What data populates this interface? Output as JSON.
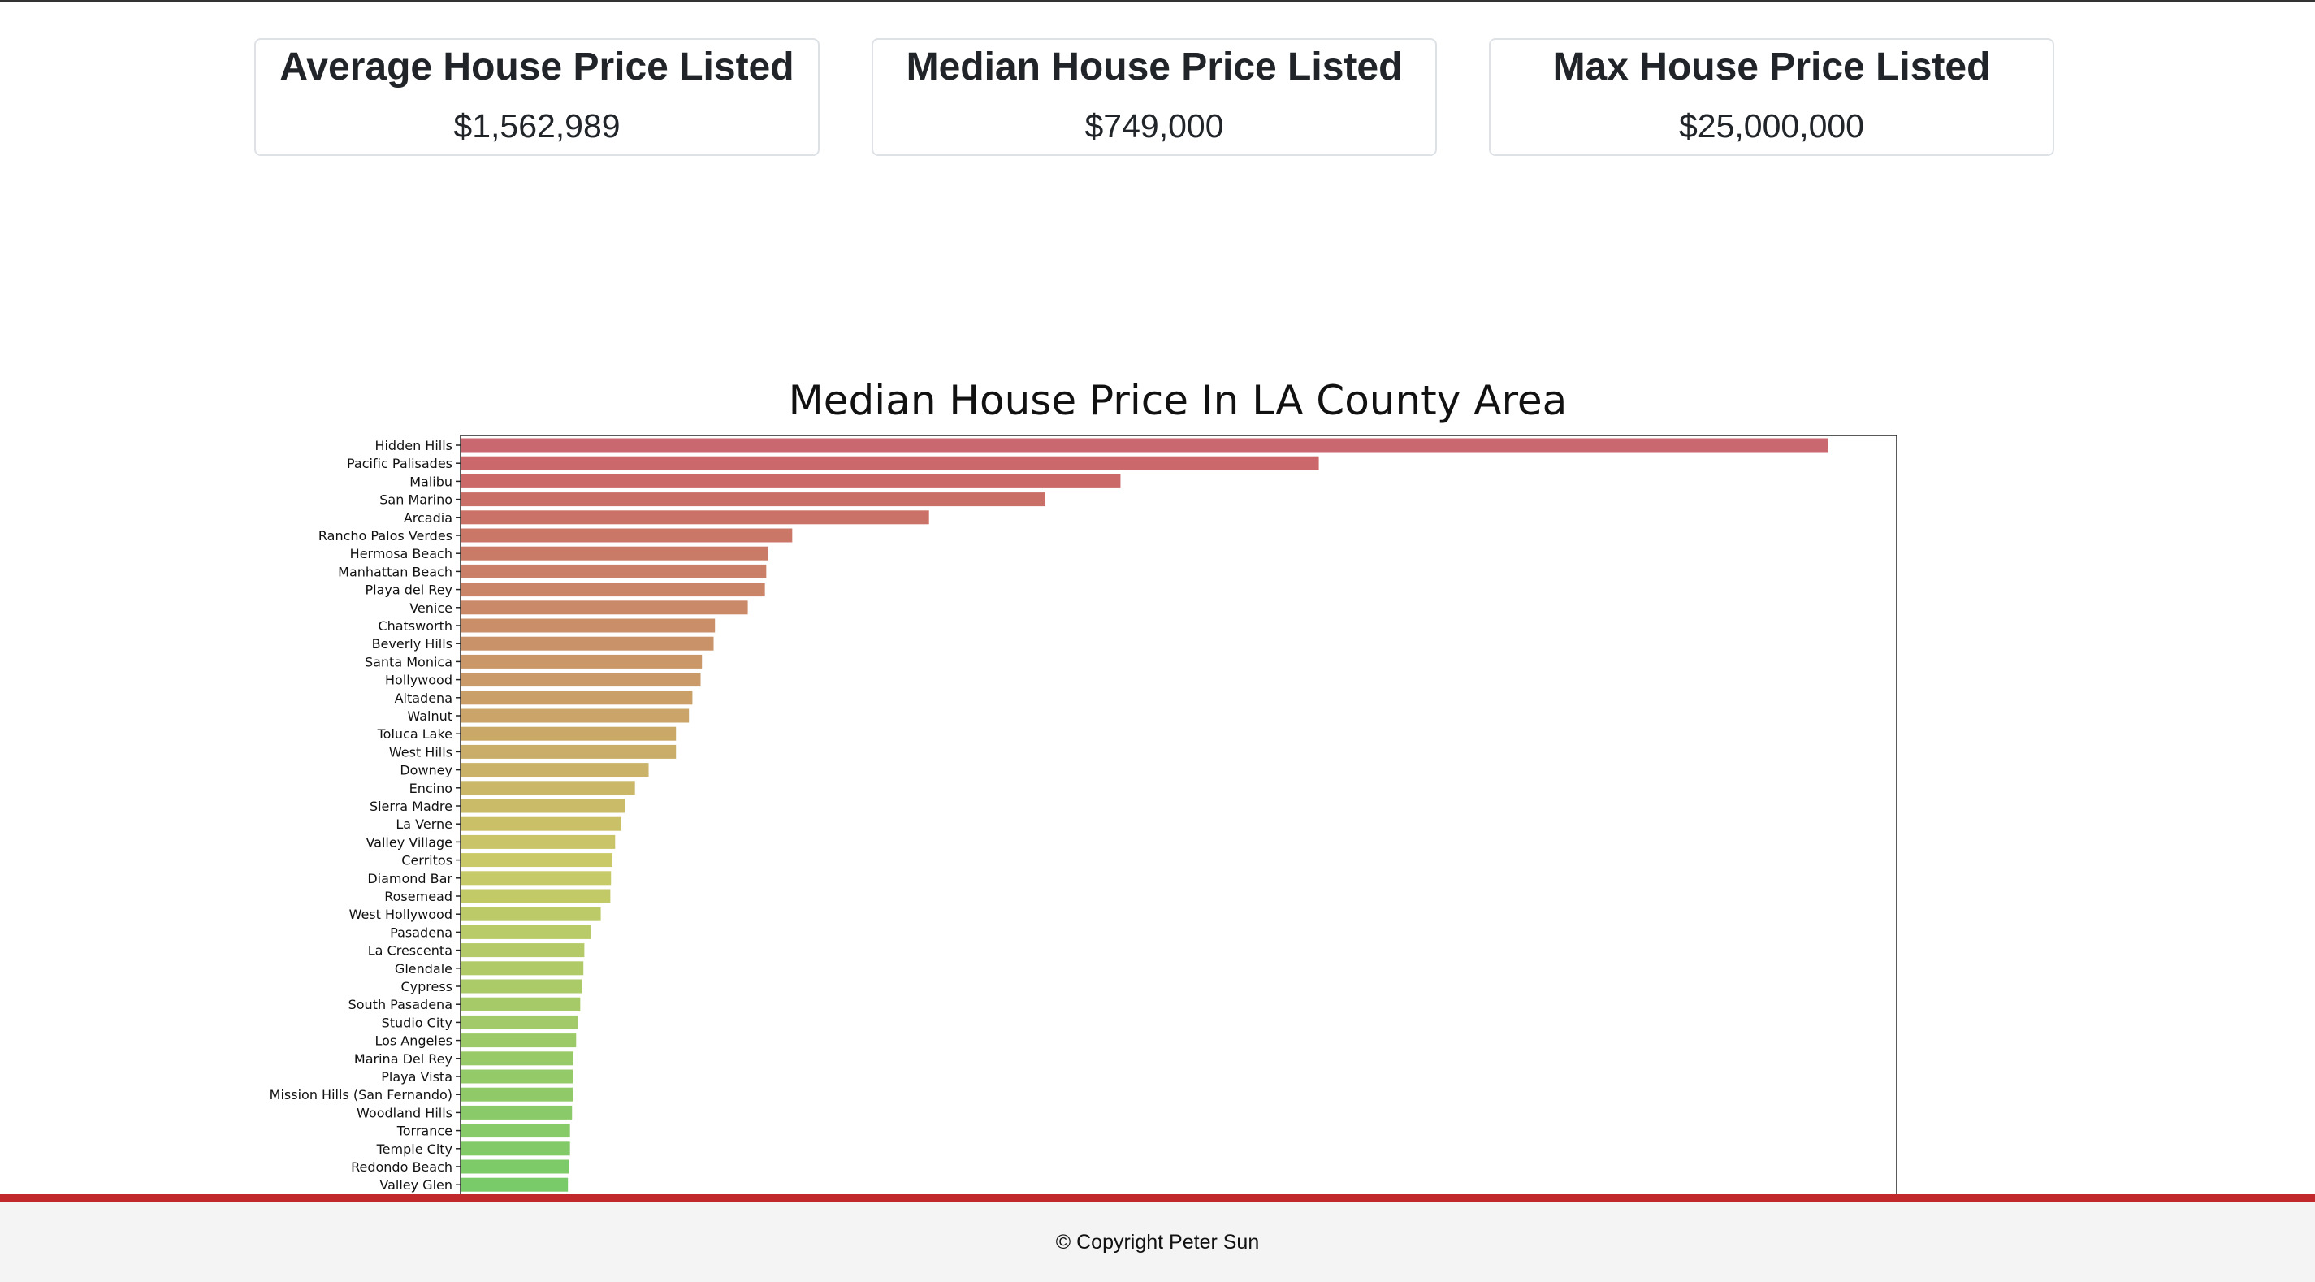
{
  "stats": {
    "average": {
      "title": "Average House Price Listed",
      "value": "$1,562,989"
    },
    "median": {
      "title": "Median House Price Listed",
      "value": "$749,000"
    },
    "max": {
      "title": "Max House Price Listed",
      "value": "$25,000,000"
    }
  },
  "chart_data": {
    "type": "bar",
    "orientation": "horizontal",
    "title": "Median House Price In LA County Area",
    "xlabel": "",
    "ylabel": "",
    "xlim": [
      0,
      10500000
    ],
    "grid": false,
    "legend": "none",
    "palette": "husl",
    "categories": [
      "Hidden Hills",
      "Pacific Palisades",
      "Malibu",
      "San Marino",
      "Arcadia",
      "Rancho Palos Verdes",
      "Hermosa Beach",
      "Manhattan Beach",
      "Playa del Rey",
      "Venice",
      "Chatsworth",
      "Beverly Hills",
      "Santa Monica",
      "Hollywood",
      "Altadena",
      "Walnut",
      "Toluca Lake",
      "West Hills",
      "Downey",
      "Encino",
      "Sierra Madre",
      "La Verne",
      "Valley Village",
      "Cerritos",
      "Diamond Bar",
      "Rosemead",
      "West Hollywood",
      "Pasadena",
      "La Crescenta",
      "Glendale",
      "Cypress",
      "South Pasadena",
      "Studio City",
      "Los Angeles",
      "Marina Del Rey",
      "Playa Vista",
      "Mission Hills (San Fernando)",
      "Woodland Hills",
      "Torrance",
      "Temple City",
      "Redondo Beach",
      "Valley Glen"
    ],
    "values": [
      10000000,
      6275000,
      4825000,
      4275000,
      3425000,
      2425000,
      2250000,
      2235000,
      2225000,
      2100000,
      1860000,
      1850000,
      1765000,
      1755000,
      1695000,
      1670000,
      1575000,
      1575000,
      1375000,
      1275000,
      1200000,
      1175000,
      1130000,
      1110000,
      1100000,
      1095000,
      1025000,
      955000,
      905000,
      898000,
      885000,
      875000,
      860000,
      845000,
      825000,
      820000,
      820000,
      815000,
      800000,
      800000,
      790000,
      785000
    ]
  },
  "footer": {
    "text": "© Copyright Peter Sun"
  }
}
